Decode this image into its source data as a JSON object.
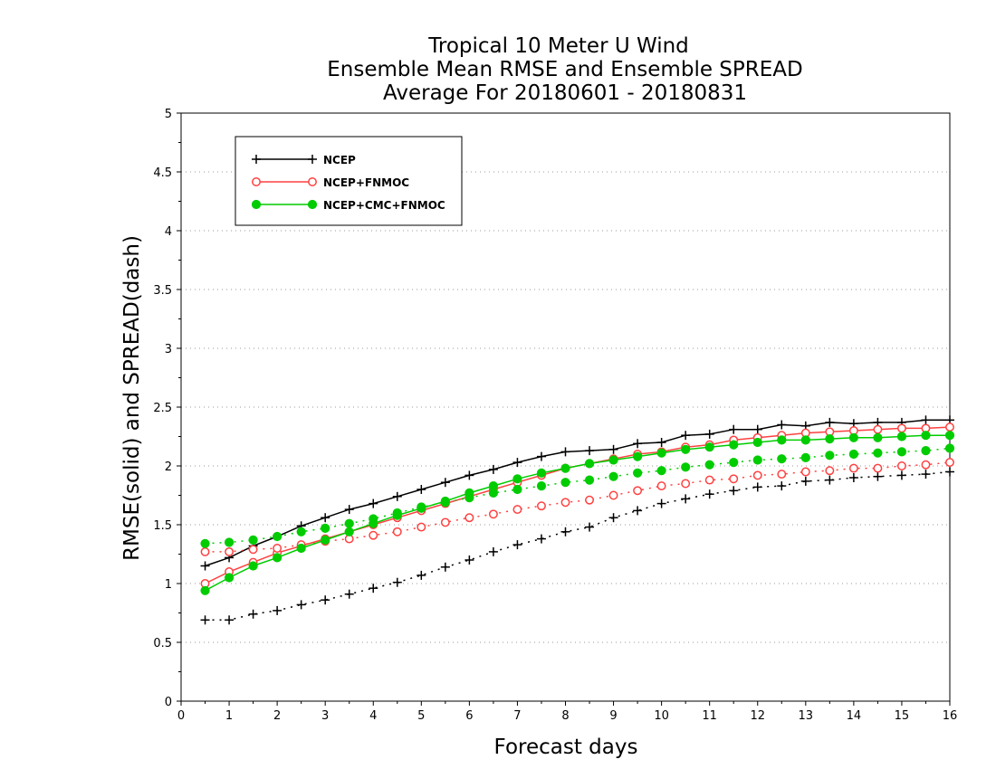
{
  "chart_data": {
    "type": "line",
    "title_lines": [
      "Tropical 10 Meter U Wind",
      "Ensemble Mean RMSE and Ensemble SPREAD",
      "Average For 20180601 - 20180831"
    ],
    "xlabel": "Forecast days",
    "ylabel": "RMSE(solid) and SPREAD(dash)",
    "xlim": [
      0,
      16
    ],
    "ylim": [
      0,
      5
    ],
    "x_ticks": [
      "0",
      "1",
      "2",
      "3",
      "4",
      "5",
      "6",
      "7",
      "8",
      "9",
      "10",
      "11",
      "12",
      "13",
      "14",
      "15",
      "16"
    ],
    "y_ticks": [
      "0",
      "0.5",
      "1",
      "1.5",
      "2",
      "2.5",
      "3",
      "3.5",
      "4",
      "4.5",
      "5"
    ],
    "grid": "horizontal dotted",
    "legend_position": "top-left",
    "x": [
      0.5,
      1,
      1.5,
      2,
      2.5,
      3,
      3.5,
      4,
      4.5,
      5,
      5.5,
      6,
      6.5,
      7,
      7.5,
      8,
      8.5,
      9,
      9.5,
      10,
      10.5,
      11,
      11.5,
      12,
      12.5,
      13,
      13.5,
      14,
      14.5,
      15,
      15.5,
      16
    ],
    "series": [
      {
        "name": "NCEP",
        "marker": "plus",
        "color": "#000000",
        "rmse": [
          1.15,
          1.22,
          1.32,
          1.4,
          1.49,
          1.56,
          1.63,
          1.68,
          1.74,
          1.8,
          1.86,
          1.92,
          1.97,
          2.03,
          2.08,
          2.12,
          2.13,
          2.14,
          2.19,
          2.2,
          2.26,
          2.27,
          2.31,
          2.31,
          2.35,
          2.34,
          2.37,
          2.36,
          2.37,
          2.37,
          2.39,
          2.39
        ],
        "spread": [
          0.69,
          0.69,
          0.74,
          0.77,
          0.82,
          0.86,
          0.91,
          0.96,
          1.01,
          1.07,
          1.14,
          1.2,
          1.27,
          1.33,
          1.38,
          1.44,
          1.48,
          1.56,
          1.62,
          1.68,
          1.72,
          1.76,
          1.79,
          1.82,
          1.83,
          1.87,
          1.88,
          1.9,
          1.91,
          1.92,
          1.93,
          1.95
        ]
      },
      {
        "name": "NCEP+FNMOC",
        "marker": "open-circle",
        "color": "#ff4040",
        "rmse": [
          1.0,
          1.1,
          1.18,
          1.26,
          1.32,
          1.38,
          1.44,
          1.5,
          1.56,
          1.62,
          1.68,
          1.74,
          1.8,
          1.86,
          1.92,
          1.98,
          2.02,
          2.06,
          2.1,
          2.12,
          2.16,
          2.18,
          2.22,
          2.24,
          2.26,
          2.28,
          2.29,
          2.3,
          2.31,
          2.32,
          2.32,
          2.33
        ],
        "spread": [
          1.27,
          1.27,
          1.29,
          1.3,
          1.33,
          1.36,
          1.38,
          1.41,
          1.44,
          1.48,
          1.52,
          1.56,
          1.59,
          1.63,
          1.66,
          1.69,
          1.71,
          1.75,
          1.79,
          1.83,
          1.85,
          1.88,
          1.89,
          1.92,
          1.93,
          1.95,
          1.96,
          1.98,
          1.98,
          2.0,
          2.01,
          2.03
        ]
      },
      {
        "name": "NCEP+CMC+FNMOC",
        "marker": "filled-circle",
        "color": "#00cc00",
        "rmse": [
          0.94,
          1.05,
          1.15,
          1.22,
          1.3,
          1.37,
          1.44,
          1.51,
          1.58,
          1.64,
          1.7,
          1.77,
          1.83,
          1.89,
          1.94,
          1.98,
          2.02,
          2.05,
          2.08,
          2.11,
          2.14,
          2.16,
          2.18,
          2.2,
          2.22,
          2.22,
          2.23,
          2.24,
          2.24,
          2.25,
          2.26,
          2.26
        ],
        "spread": [
          1.34,
          1.35,
          1.37,
          1.4,
          1.44,
          1.47,
          1.51,
          1.55,
          1.6,
          1.65,
          1.69,
          1.73,
          1.77,
          1.8,
          1.83,
          1.86,
          1.88,
          1.91,
          1.94,
          1.96,
          1.99,
          2.01,
          2.03,
          2.05,
          2.06,
          2.07,
          2.09,
          2.1,
          2.11,
          2.12,
          2.13,
          2.15
        ]
      }
    ]
  }
}
